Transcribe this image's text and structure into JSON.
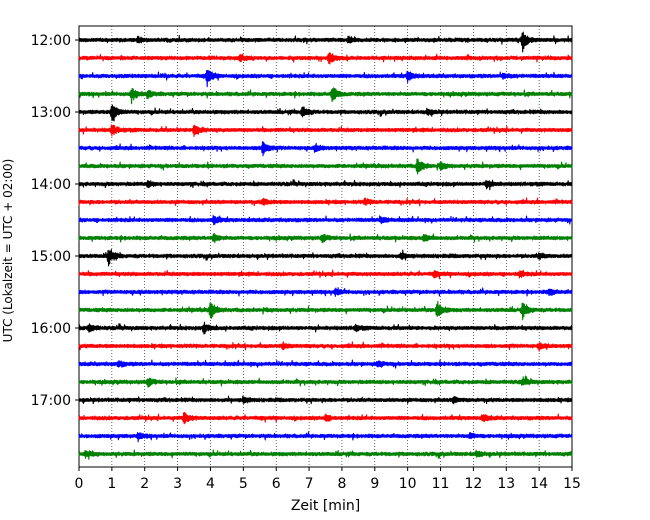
{
  "chart_data": {
    "type": "line",
    "title": "",
    "xlabel": "Zeit  [min]",
    "ylabel": "UTC (Lokalzeit = UTC + 02:00)",
    "xlim": [
      0,
      15
    ],
    "x_ticks": [
      0,
      1,
      2,
      3,
      4,
      5,
      6,
      7,
      8,
      9,
      10,
      11,
      12,
      13,
      14,
      15
    ],
    "x_tick_labels": [
      "0",
      "1",
      "2",
      "3",
      "4",
      "5",
      "6",
      "7",
      "8",
      "9",
      "10",
      "11",
      "12",
      "13",
      "14",
      "15"
    ],
    "y_tick_labels": [
      "12:00",
      "13:00",
      "14:00",
      "15:00",
      "16:00",
      "17:00"
    ],
    "grid": "vertical dotted at each minute",
    "trace_colors": [
      "#000000",
      "#ff0000",
      "#0000ff",
      "#008000"
    ],
    "traces": [
      {
        "start": "12:00",
        "color": "#000000",
        "events": [
          {
            "t": 13.5,
            "amp": 1.0
          },
          {
            "t": 1.8,
            "amp": 0.3
          },
          {
            "t": 8.2,
            "amp": 0.35
          }
        ]
      },
      {
        "start": "12:15",
        "color": "#ff0000",
        "events": [
          {
            "t": 7.6,
            "amp": 0.75
          },
          {
            "t": 4.9,
            "amp": 0.3
          }
        ]
      },
      {
        "start": "12:30",
        "color": "#0000ff",
        "events": [
          {
            "t": 3.9,
            "amp": 0.85
          },
          {
            "t": 10.0,
            "amp": 0.6
          },
          {
            "t": 12.9,
            "amp": 0.3
          }
        ]
      },
      {
        "start": "12:45",
        "color": "#008000",
        "events": [
          {
            "t": 1.6,
            "amp": 0.8
          },
          {
            "t": 7.7,
            "amp": 0.9
          },
          {
            "t": 2.1,
            "amp": 0.35
          }
        ]
      },
      {
        "start": "13:00",
        "color": "#000000",
        "events": [
          {
            "t": 1.0,
            "amp": 1.15
          },
          {
            "t": 6.8,
            "amp": 0.65
          },
          {
            "t": 10.6,
            "amp": 0.3
          }
        ]
      },
      {
        "start": "13:15",
        "color": "#ff0000",
        "events": [
          {
            "t": 1.0,
            "amp": 0.6
          },
          {
            "t": 3.5,
            "amp": 0.75
          }
        ]
      },
      {
        "start": "13:30",
        "color": "#0000ff",
        "events": [
          {
            "t": 5.6,
            "amp": 0.85
          },
          {
            "t": 7.2,
            "amp": 0.35
          }
        ]
      },
      {
        "start": "13:45",
        "color": "#008000",
        "events": [
          {
            "t": 10.3,
            "amp": 0.9
          },
          {
            "t": 11.0,
            "amp": 0.35
          }
        ]
      },
      {
        "start": "14:00",
        "color": "#000000",
        "events": [
          {
            "t": 12.4,
            "amp": 0.45
          },
          {
            "t": 2.1,
            "amp": 0.3
          }
        ]
      },
      {
        "start": "14:15",
        "color": "#ff0000",
        "events": [
          {
            "t": 5.6,
            "amp": 0.3
          },
          {
            "t": 8.7,
            "amp": 0.3
          }
        ]
      },
      {
        "start": "14:30",
        "color": "#0000ff",
        "events": [
          {
            "t": 4.1,
            "amp": 0.45
          },
          {
            "t": 9.2,
            "amp": 0.3
          }
        ]
      },
      {
        "start": "14:45",
        "color": "#008000",
        "events": [
          {
            "t": 4.1,
            "amp": 0.45
          },
          {
            "t": 7.4,
            "amp": 0.4
          },
          {
            "t": 10.5,
            "amp": 0.35
          }
        ]
      },
      {
        "start": "15:00",
        "color": "#000000",
        "events": [
          {
            "t": 0.9,
            "amp": 1.0
          },
          {
            "t": 9.8,
            "amp": 0.35
          },
          {
            "t": 14.0,
            "amp": 0.3
          }
        ]
      },
      {
        "start": "15:15",
        "color": "#ff0000",
        "events": [
          {
            "t": 10.8,
            "amp": 0.3
          },
          {
            "t": 13.4,
            "amp": 0.3
          }
        ]
      },
      {
        "start": "15:30",
        "color": "#0000ff",
        "events": [
          {
            "t": 7.8,
            "amp": 0.35
          },
          {
            "t": 14.3,
            "amp": 0.35
          }
        ]
      },
      {
        "start": "15:45",
        "color": "#008000",
        "events": [
          {
            "t": 4.0,
            "amp": 1.0
          },
          {
            "t": 10.9,
            "amp": 1.0
          },
          {
            "t": 13.5,
            "amp": 0.85
          }
        ]
      },
      {
        "start": "16:00",
        "color": "#000000",
        "events": [
          {
            "t": 0.3,
            "amp": 0.45
          },
          {
            "t": 3.8,
            "amp": 0.55
          },
          {
            "t": 8.4,
            "amp": 0.3
          }
        ]
      },
      {
        "start": "16:15",
        "color": "#ff0000",
        "events": [
          {
            "t": 6.2,
            "amp": 0.3
          },
          {
            "t": 14.0,
            "amp": 0.3
          }
        ]
      },
      {
        "start": "16:30",
        "color": "#0000ff",
        "events": [
          {
            "t": 1.2,
            "amp": 0.3
          },
          {
            "t": 9.1,
            "amp": 0.3
          }
        ]
      },
      {
        "start": "16:45",
        "color": "#008000",
        "events": [
          {
            "t": 2.1,
            "amp": 0.45
          },
          {
            "t": 13.5,
            "amp": 0.4
          }
        ]
      },
      {
        "start": "17:00",
        "color": "#000000",
        "events": [
          {
            "t": 5.0,
            "amp": 0.3
          },
          {
            "t": 11.4,
            "amp": 0.3
          }
        ]
      },
      {
        "start": "17:15",
        "color": "#ff0000",
        "events": [
          {
            "t": 3.2,
            "amp": 0.65
          },
          {
            "t": 7.5,
            "amp": 0.35
          },
          {
            "t": 12.3,
            "amp": 0.35
          }
        ]
      },
      {
        "start": "17:30",
        "color": "#0000ff",
        "events": [
          {
            "t": 1.8,
            "amp": 0.3
          },
          {
            "t": 11.9,
            "amp": 0.3
          }
        ]
      },
      {
        "start": "17:45",
        "color": "#008000",
        "events": [
          {
            "t": 0.2,
            "amp": 0.35
          },
          {
            "t": 12.1,
            "amp": 0.35
          }
        ]
      }
    ]
  }
}
